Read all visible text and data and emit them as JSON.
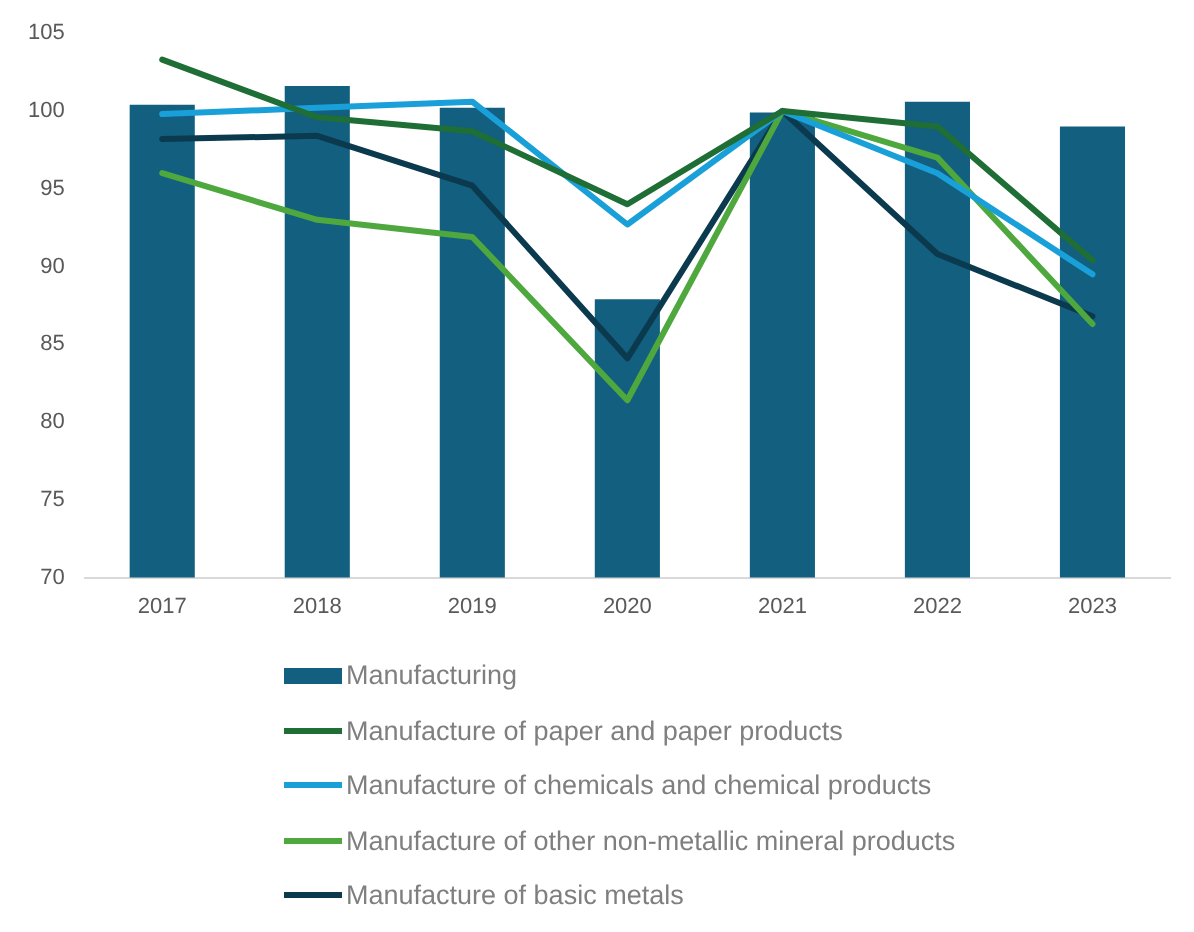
{
  "chart_data": {
    "type": "bar",
    "categories": [
      "2017",
      "2018",
      "2019",
      "2020",
      "2021",
      "2022",
      "2023"
    ],
    "series": [
      {
        "name": "Manufacturing",
        "color": "#135f80",
        "values": [
          100.4,
          101.6,
          100.2,
          87.9,
          99.9,
          100.6,
          99.0
        ]
      },
      {
        "name": "Manufacture of paper and paper products",
        "type": "line",
        "color": "#1e6e35",
        "values": [
          103.3,
          99.6,
          98.7,
          94.0,
          100.0,
          99.0,
          90.4
        ]
      },
      {
        "name": "Manufacture of chemicals and chemical products",
        "type": "line",
        "color": "#1aa0d8",
        "values": [
          99.8,
          100.2,
          100.6,
          92.7,
          100.0,
          96.0,
          89.5
        ]
      },
      {
        "name": "Manufacture of other non-metallic mineral products",
        "type": "line",
        "color": "#4ea83e",
        "values": [
          96.0,
          93.0,
          91.9,
          81.4,
          100.0,
          97.0,
          86.3
        ]
      },
      {
        "name": "Manufacture of basic metals",
        "type": "line",
        "color": "#0b3a4e",
        "values": [
          98.2,
          98.4,
          95.2,
          84.1,
          100.0,
          90.8,
          86.8
        ]
      }
    ],
    "ylim": [
      70,
      105
    ],
    "yticks": [
      70,
      75,
      80,
      85,
      90,
      95,
      100,
      105
    ],
    "grid": false,
    "legend": "bottom",
    "marker": "none"
  }
}
